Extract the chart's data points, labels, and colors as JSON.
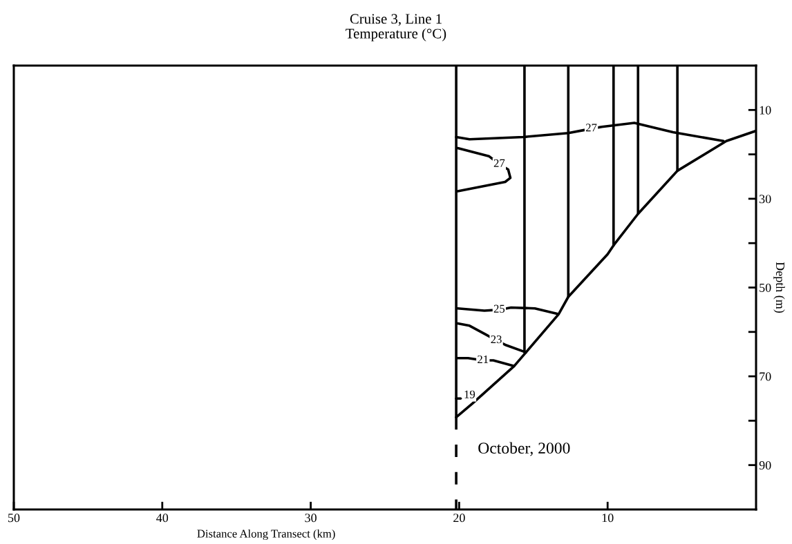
{
  "chart_data": {
    "type": "line",
    "title": "Cruise 3, Line 1",
    "subtitle": "Temperature (°C)",
    "xlabel": "Distance Along Transect (km)",
    "ylabel": "Depth (m)",
    "xlim": [
      50,
      0
    ],
    "xticks": [
      50,
      40,
      30,
      20,
      10
    ],
    "ylim": [
      100,
      0
    ],
    "yticks": [
      {
        "value": 10,
        "label": "10"
      },
      {
        "value": 20,
        "label": null
      },
      {
        "value": 30,
        "label": "30"
      },
      {
        "value": 40,
        "label": null
      },
      {
        "value": 50,
        "label": "50"
      },
      {
        "value": 60,
        "label": null
      },
      {
        "value": 70,
        "label": "70"
      },
      {
        "value": 80,
        "label": null
      },
      {
        "value": 90,
        "label": "90"
      }
    ],
    "grid": false,
    "legend": false,
    "marker": "none",
    "line_style": "solid",
    "series": [
      {
        "color": "#000000",
        "x": [
          20.2,
          20.2
        ],
        "values": [
          0,
          79.2
        ]
      },
      {
        "color": "#000000",
        "x": [
          15.6,
          15.6
        ],
        "values": [
          0,
          64.6
        ]
      },
      {
        "color": "#000000",
        "x": [
          12.65,
          12.65
        ],
        "values": [
          0,
          52.1
        ]
      },
      {
        "color": "#000000",
        "x": [
          9.6,
          9.6
        ],
        "values": [
          0,
          40.5
        ]
      },
      {
        "color": "#000000",
        "x": [
          7.95,
          7.95
        ],
        "values": [
          0,
          33.4
        ]
      },
      {
        "color": "#000000",
        "x": [
          5.3,
          5.3
        ],
        "values": [
          0,
          23.7
        ]
      },
      {
        "color": "#000000",
        "x": [
          20.2,
          20.2
        ],
        "values": [
          79.2,
          100
        ],
        "line_style": "dashed"
      },
      {
        "color": "#000000",
        "x": [
          20.2,
          19.1,
          16.3,
          15.5,
          13.3,
          12.65,
          10.0,
          9.6,
          7.95,
          5.3,
          2.0,
          0.0
        ],
        "values": [
          79.2,
          76.1,
          67.7,
          64.6,
          56.0,
          52.1,
          42.5,
          40.5,
          33.4,
          23.7,
          17.0,
          14.7
        ]
      },
      {
        "color": "#000000",
        "x": [
          20.2,
          19.3,
          15.7,
          12.65,
          11.7,
          10.4,
          8.2,
          5.6,
          2.2
        ],
        "values": [
          16.1,
          16.6,
          16.1,
          15.2,
          14.6,
          13.8,
          12.9,
          15.0,
          17.0
        ]
      },
      {
        "color": "#000000",
        "x": [
          20.1,
          18.0,
          17.3,
          16.7,
          16.55,
          16.9,
          20.1
        ],
        "values": [
          18.6,
          20.4,
          22.2,
          23.4,
          25.3,
          26.2,
          28.3
        ]
      },
      {
        "color": "#000000",
        "x": [
          20.1,
          18.3,
          17.3,
          16.5,
          14.9,
          13.4
        ],
        "values": [
          54.7,
          55.2,
          55.0,
          54.5,
          54.7,
          55.9
        ]
      },
      {
        "color": "#000000",
        "x": [
          20.1,
          19.3,
          18.2,
          17.5,
          16.9,
          15.5
        ],
        "values": [
          58.1,
          58.6,
          60.6,
          61.9,
          62.9,
          64.6
        ]
      },
      {
        "color": "#000000",
        "x": [
          20.1,
          19.4,
          18.4,
          17.7,
          16.3
        ],
        "values": [
          65.9,
          65.9,
          66.4,
          66.4,
          67.7
        ]
      },
      {
        "color": "#000000",
        "x": [
          20.2,
          19.9
        ],
        "values": [
          75.0,
          75.0
        ]
      }
    ],
    "annotations": [
      {
        "text": "27",
        "x": 11.1,
        "y": 14.2
      },
      {
        "text": "27",
        "x": 17.3,
        "y": 22.2
      },
      {
        "text": "25",
        "x": 17.3,
        "y": 55.0
      },
      {
        "text": "23",
        "x": 17.5,
        "y": 61.9
      },
      {
        "text": "21",
        "x": 18.4,
        "y": 66.4
      },
      {
        "text": "19",
        "x": 19.3,
        "y": 74.3
      },
      "October, 2000"
    ]
  }
}
